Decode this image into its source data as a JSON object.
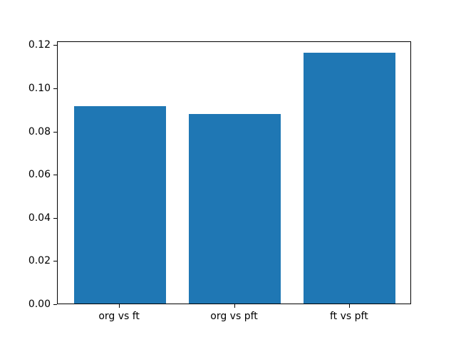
{
  "colors": {
    "background": "#ffffff",
    "spine": "#000000",
    "tick_text": "#000000"
  },
  "chart_data": {
    "type": "bar",
    "title": "",
    "xlabel": "",
    "ylabel": "",
    "categories": [
      "org vs ft",
      "org vs pft",
      "ft vs pft"
    ],
    "values": [
      0.0915,
      0.0878,
      0.1162
    ],
    "bar_color": "#1f77b4",
    "bar_width_fraction": 0.8,
    "ylim": [
      0,
      0.1218
    ],
    "yticks": [
      0,
      0.02,
      0.04,
      0.06,
      0.08,
      0.1,
      0.12
    ],
    "ytick_labels": [
      "0.00",
      "0.02",
      "0.04",
      "0.06",
      "0.08",
      "0.10",
      "0.12"
    ],
    "grid": false,
    "legend": "none"
  }
}
